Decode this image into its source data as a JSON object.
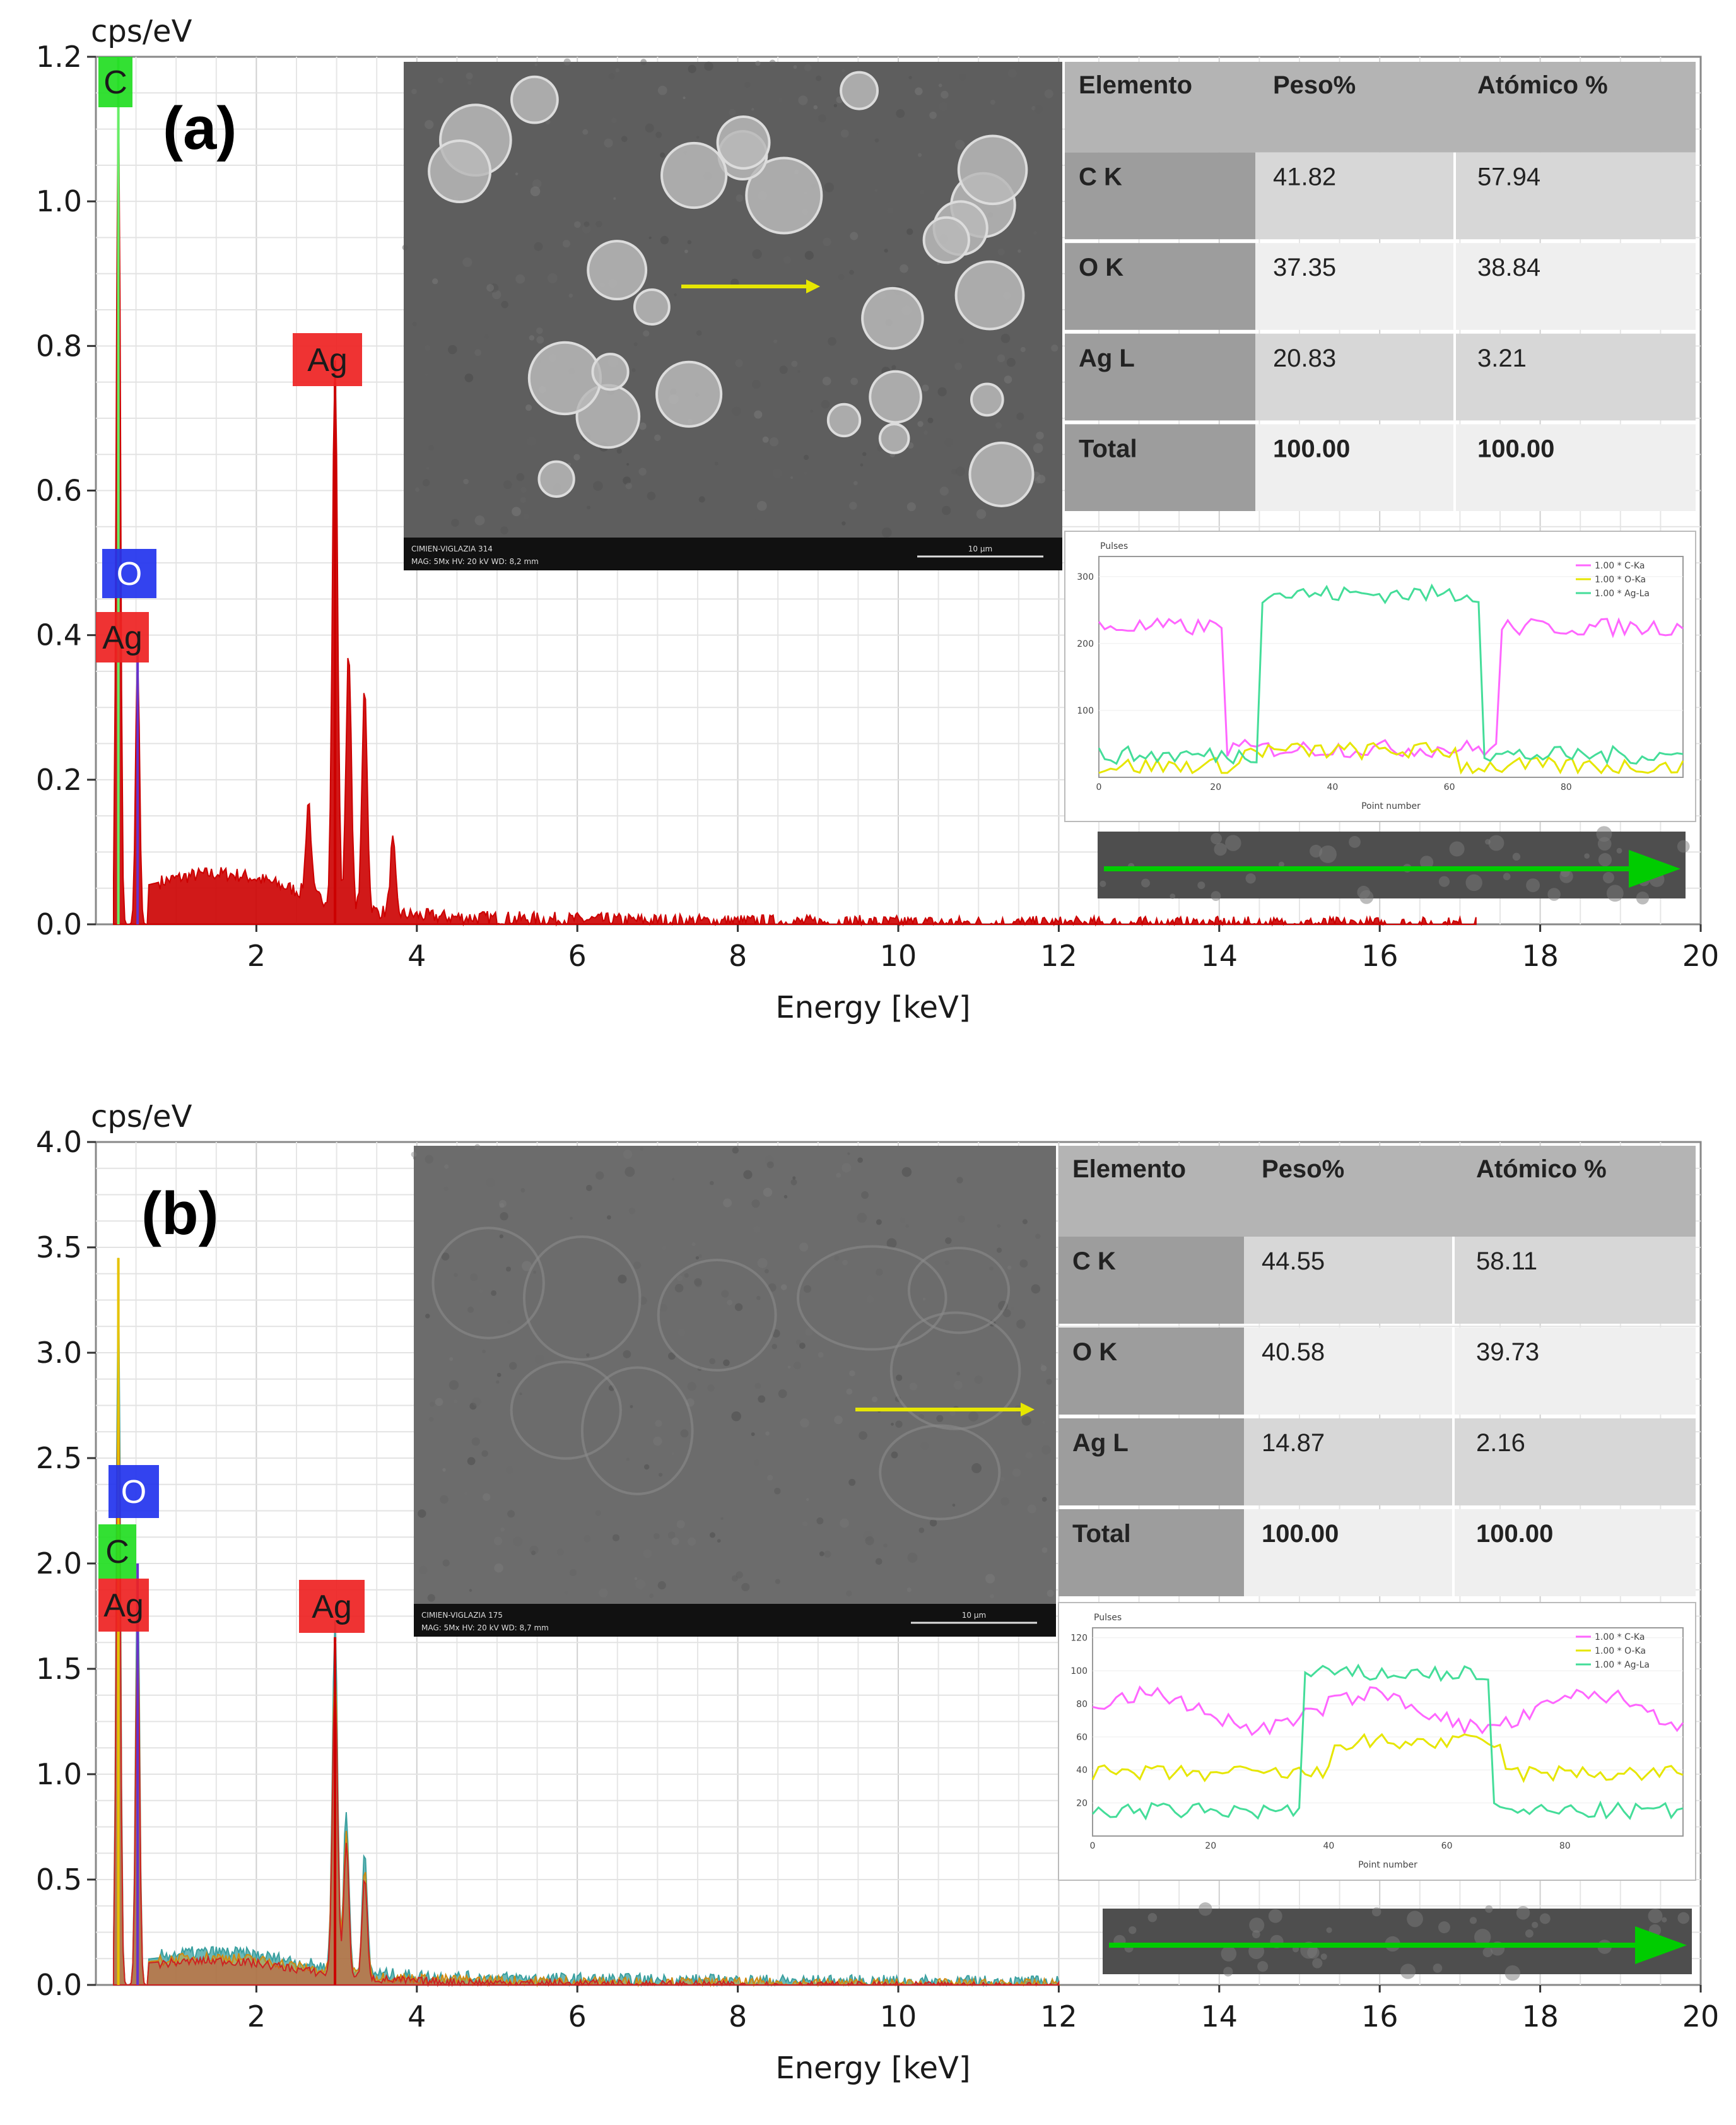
{
  "chart_data": [
    {
      "panel": "(a)",
      "type": "area",
      "ylabel": "cps/eV",
      "xlabel": "Energy [keV]",
      "xlim": [
        0,
        20
      ],
      "ylim": [
        0,
        1.2
      ],
      "xticks": [
        2,
        4,
        6,
        8,
        10,
        12,
        14,
        16,
        18,
        20
      ],
      "yticks": [
        "0.0",
        "0.2",
        "0.4",
        "0.6",
        "0.8",
        "1.0",
        "1.2"
      ],
      "element_labels": [
        {
          "text": "C",
          "energy": 0.28,
          "color": "#22dd22"
        },
        {
          "text": "O",
          "energy": 0.52,
          "color": "#2233ee"
        },
        {
          "text": "Ag",
          "energy": 0.3,
          "color": "#ee2222"
        },
        {
          "text": "Ag",
          "energy": 2.98,
          "color": "#ee2222"
        }
      ],
      "peaks": [
        {
          "energy": 0.28,
          "value": 1.2,
          "element": "C"
        },
        {
          "energy": 0.52,
          "value": 0.38,
          "element": "O"
        },
        {
          "energy": 2.98,
          "value": 0.75,
          "element": "Ag"
        },
        {
          "energy": 3.15,
          "value": 0.36,
          "element": "Ag"
        },
        {
          "energy": 3.35,
          "value": 0.31,
          "element": "Ag"
        },
        {
          "energy": 3.7,
          "value": 0.1,
          "element": "Ag"
        },
        {
          "energy": 2.65,
          "value": 0.13,
          "element": "Ag"
        }
      ],
      "table": {
        "headers": [
          "Elemento",
          "Peso%",
          "Atómico %"
        ],
        "rows": [
          [
            "C K",
            "41.82",
            "57.94"
          ],
          [
            "O K",
            "37.35",
            "38.84"
          ],
          [
            "Ag L",
            "20.83",
            "3.21"
          ],
          [
            "Total",
            "100.00",
            "100.00"
          ]
        ]
      },
      "linescan": {
        "title": "Pulses",
        "xlabel": "Point number",
        "legend": [
          "1.00 * C-Ka",
          "1.00 * O-Ka",
          "1.00 * Ag-La"
        ],
        "yticks": [
          "100",
          "200",
          "300"
        ],
        "xticks": [
          "0",
          "20",
          "40",
          "60",
          "80"
        ]
      },
      "sem": {
        "footer_left": "CIMIEN-VIGLAZIA 314",
        "footer_line2": "MAG: 5Mx  HV: 20 kV  WD: 8,2 mm",
        "scale": "10 µm"
      }
    },
    {
      "panel": "(b)",
      "type": "area",
      "ylabel": "cps/eV",
      "xlabel": "Energy [keV]",
      "xlim": [
        0,
        20
      ],
      "ylim": [
        0,
        4.0
      ],
      "xticks": [
        2,
        4,
        6,
        8,
        10,
        12,
        14,
        16,
        18,
        20
      ],
      "yticks": [
        "0.0",
        "0.5",
        "1.0",
        "1.5",
        "2.0",
        "2.5",
        "3.0",
        "3.5",
        "4.0"
      ],
      "element_labels": [
        {
          "text": "O",
          "energy": 0.52,
          "color": "#2233ee"
        },
        {
          "text": "C",
          "energy": 0.28,
          "color": "#22dd22"
        },
        {
          "text": "Ag",
          "energy": 0.3,
          "color": "#ee2222"
        },
        {
          "text": "Ag",
          "energy": 2.98,
          "color": "#ee2222"
        }
      ],
      "peaks": [
        {
          "energy": 0.28,
          "value": 3.45,
          "element": "C"
        },
        {
          "energy": 0.52,
          "value": 2.0,
          "element": "O"
        },
        {
          "energy": 2.98,
          "value": 1.65,
          "element": "Ag"
        },
        {
          "energy": 3.12,
          "value": 0.75,
          "element": "Ag"
        },
        {
          "energy": 3.35,
          "value": 0.55,
          "element": "Ag"
        }
      ],
      "table": {
        "headers": [
          "Elemento",
          "Peso%",
          "Atómico %"
        ],
        "rows": [
          [
            "C K",
            "44.55",
            "58.11"
          ],
          [
            "O K",
            "40.58",
            "39.73"
          ],
          [
            "Ag L",
            "14.87",
            "2.16"
          ],
          [
            "Total",
            "100.00",
            "100.00"
          ]
        ]
      },
      "linescan": {
        "title": "Pulses",
        "xlabel": "Point number",
        "legend": [
          "1.00 * C-Ka",
          "1.00 * O-Ka",
          "1.00 * Ag-La"
        ],
        "yticks": [
          "20",
          "40",
          "60",
          "80",
          "100",
          "120"
        ],
        "xticks": [
          "0",
          "20",
          "40",
          "60",
          "80"
        ]
      },
      "sem": {
        "footer_left": "CIMIEN-VIGLAZIA 175",
        "footer_line2": "MAG: 5Mx  HV: 20 kV  WD: 8,7 mm",
        "scale": "10 µm"
      }
    }
  ],
  "colors": {
    "spectrum_a": "#cc0000",
    "spectrum_b_blue": "#1f77b4",
    "spectrum_b_teal": "#3aa0a0",
    "c_label": "#22dd22",
    "o_label": "#2233ee",
    "ag_label": "#ee2222",
    "c_line": "#ff66ff",
    "o_line": "#e6e600",
    "ag_line": "#44dd99",
    "arrow_yellow": "#e6e600",
    "arrow_green": "#00cc00"
  }
}
